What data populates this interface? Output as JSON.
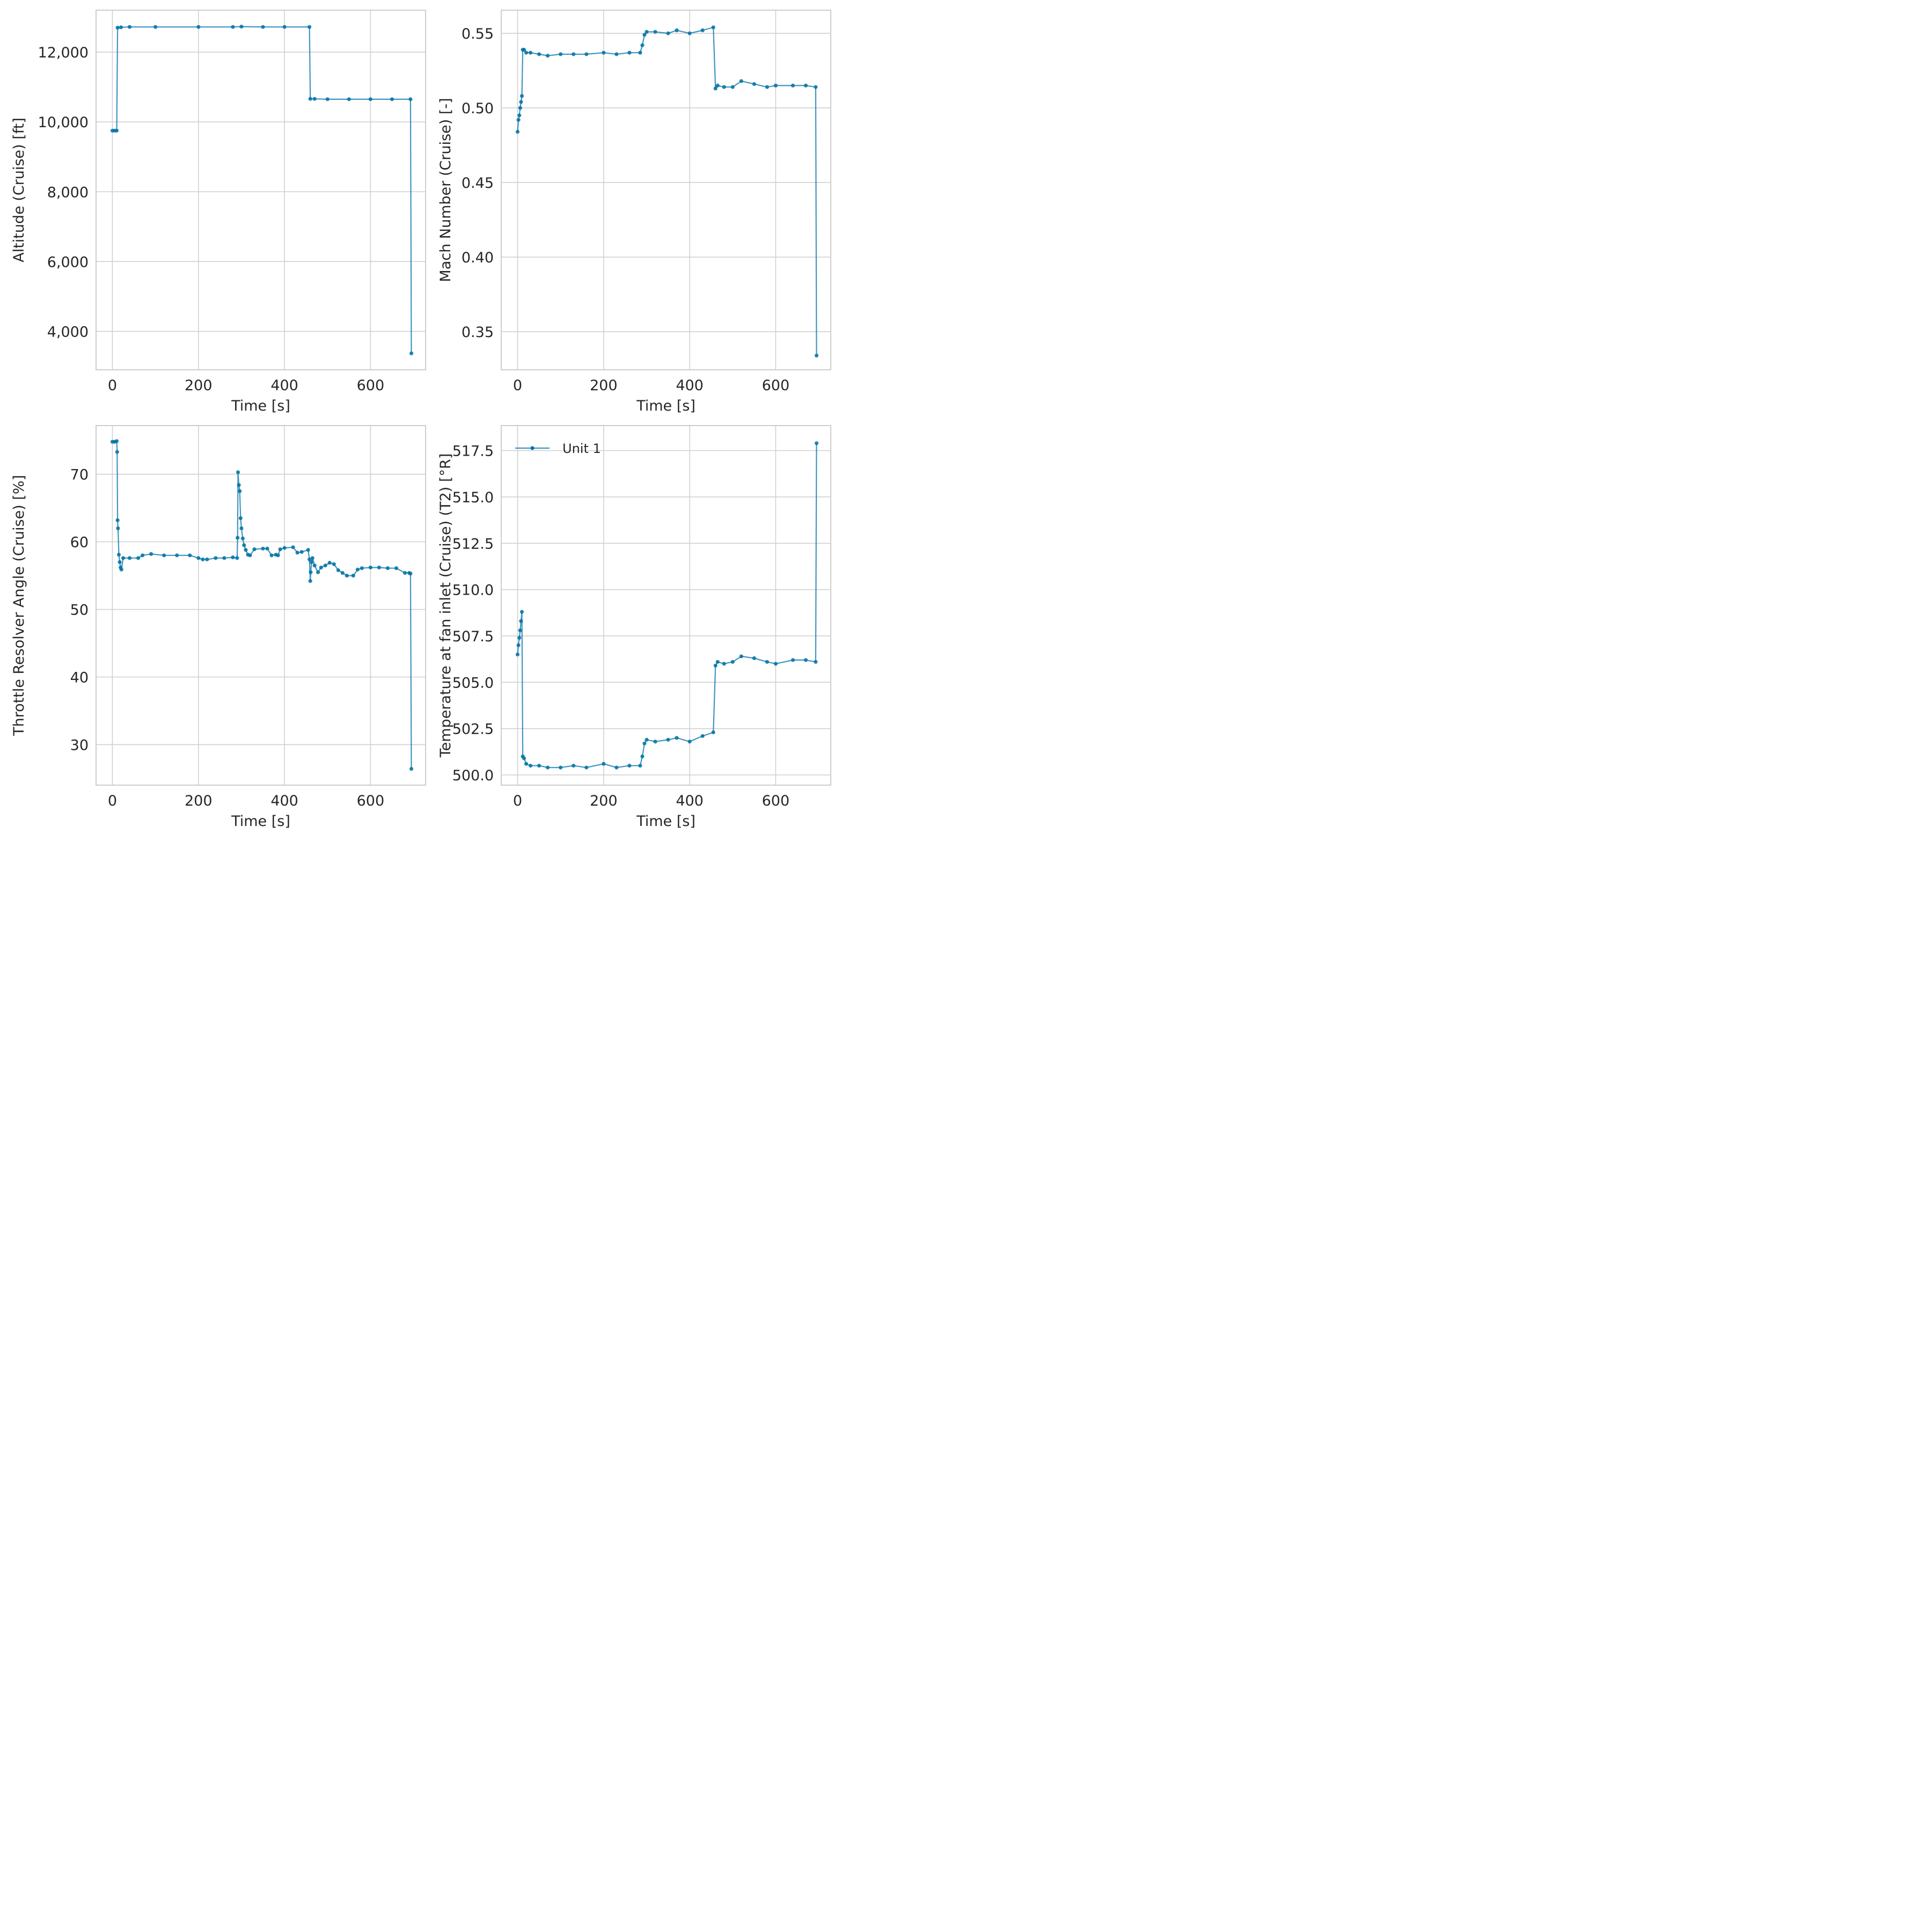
{
  "chart_data": [
    {
      "type": "line",
      "xlabel": "Time [s]",
      "ylabel": "Altitude (Cruise) [ft]",
      "xlim": [
        -38,
        728
      ],
      "ylim": [
        2900,
        13200
      ],
      "xticks": [
        0,
        200,
        400,
        600
      ],
      "xtick_labels": [
        "0",
        "200",
        "400",
        "600"
      ],
      "yticks": [
        4000,
        6000,
        8000,
        10000,
        12000
      ],
      "ytick_labels": [
        "4,000",
        "6,000",
        "8,000",
        "10,000",
        "12,000"
      ],
      "grid": true,
      "series": [
        {
          "x": [
            0,
            5,
            10,
            12,
            20,
            40,
            100,
            200,
            280,
            300,
            350,
            400,
            458,
            460,
            470,
            500,
            550,
            600,
            650,
            693,
            695
          ],
          "y": [
            9750,
            9750,
            9750,
            12700,
            12710,
            12720,
            12720,
            12720,
            12720,
            12730,
            12720,
            12720,
            12720,
            10660,
            10660,
            10650,
            10650,
            10650,
            10650,
            10650,
            3370
          ]
        }
      ]
    },
    {
      "type": "line",
      "xlabel": "Time [s]",
      "ylabel": "Mach Number (Cruise) [-]",
      "xlim": [
        -38,
        728
      ],
      "ylim": [
        0.3245,
        0.5655
      ],
      "xticks": [
        0,
        200,
        400,
        600
      ],
      "xtick_labels": [
        "0",
        "200",
        "400",
        "600"
      ],
      "yticks": [
        0.35,
        0.4,
        0.45,
        0.5,
        0.55
      ],
      "ytick_labels": [
        "0.35",
        "0.40",
        "0.45",
        "0.50",
        "0.55"
      ],
      "grid": true,
      "series": [
        {
          "x": [
            0,
            2,
            4,
            6,
            8,
            10,
            12,
            15,
            20,
            30,
            50,
            70,
            100,
            130,
            160,
            200,
            230,
            260,
            285,
            290,
            295,
            300,
            320,
            350,
            370,
            400,
            430,
            455,
            460,
            465,
            480,
            500,
            520,
            550,
            580,
            600,
            640,
            670,
            693,
            695
          ],
          "y": [
            0.484,
            0.492,
            0.495,
            0.5,
            0.504,
            0.508,
            0.539,
            0.539,
            0.537,
            0.537,
            0.536,
            0.535,
            0.536,
            0.536,
            0.536,
            0.537,
            0.536,
            0.537,
            0.537,
            0.542,
            0.549,
            0.551,
            0.551,
            0.55,
            0.552,
            0.55,
            0.552,
            0.554,
            0.513,
            0.515,
            0.514,
            0.514,
            0.518,
            0.516,
            0.514,
            0.515,
            0.515,
            0.515,
            0.514,
            0.334
          ]
        }
      ]
    },
    {
      "type": "line",
      "xlabel": "Time [s]",
      "ylabel": "Throttle Resolver Angle (Cruise) [%]",
      "xlim": [
        -38,
        728
      ],
      "ylim": [
        24,
        77.2
      ],
      "xticks": [
        0,
        200,
        400,
        600
      ],
      "xtick_labels": [
        "0",
        "200",
        "400",
        "600"
      ],
      "yticks": [
        30,
        40,
        50,
        60,
        70
      ],
      "ytick_labels": [
        "30",
        "40",
        "50",
        "60",
        "70"
      ],
      "grid": true,
      "series": [
        {
          "x": [
            0,
            5,
            10,
            11,
            12,
            13,
            15,
            17,
            19,
            21,
            25,
            40,
            60,
            70,
            90,
            120,
            150,
            180,
            200,
            210,
            220,
            240,
            260,
            280,
            290,
            291,
            292,
            294,
            296,
            298,
            300,
            303,
            306,
            310,
            315,
            320,
            330,
            350,
            360,
            370,
            380,
            385,
            390,
            400,
            420,
            430,
            440,
            455,
            458,
            460,
            461,
            463,
            465,
            470,
            478,
            485,
            495,
            505,
            515,
            525,
            535,
            545,
            560,
            570,
            580,
            600,
            620,
            640,
            660,
            680,
            690,
            693,
            695
          ],
          "y": [
            74.8,
            74.8,
            74.9,
            73.3,
            63.2,
            62.0,
            58.1,
            57.0,
            56.2,
            55.9,
            57.6,
            57.6,
            57.6,
            58.0,
            58.2,
            58.0,
            58.0,
            58.0,
            57.6,
            57.4,
            57.4,
            57.6,
            57.6,
            57.7,
            57.6,
            60.6,
            70.3,
            68.4,
            67.5,
            63.5,
            62.0,
            60.5,
            59.5,
            58.8,
            58.1,
            58.0,
            58.9,
            59.0,
            59.0,
            58.0,
            58.1,
            58.0,
            58.9,
            59.1,
            59.2,
            58.4,
            58.5,
            58.8,
            57.4,
            54.2,
            55.5,
            57.0,
            57.6,
            56.5,
            55.5,
            56.2,
            56.5,
            56.9,
            56.7,
            55.8,
            55.4,
            55.0,
            55.0,
            55.9,
            56.1,
            56.2,
            56.2,
            56.1,
            56.1,
            55.4,
            55.4,
            55.3,
            26.4
          ]
        }
      ]
    },
    {
      "type": "line",
      "xlabel": "Time [s]",
      "ylabel": "Temperature at fan inlet (Cruise) (T2) [°R]",
      "xlim": [
        -38,
        728
      ],
      "ylim": [
        499.45,
        518.85
      ],
      "xticks": [
        0,
        200,
        400,
        600
      ],
      "xtick_labels": [
        "0",
        "200",
        "400",
        "600"
      ],
      "yticks": [
        500.0,
        502.5,
        505.0,
        507.5,
        510.0,
        512.5,
        515.0,
        517.5
      ],
      "ytick_labels": [
        "500.0",
        "502.5",
        "505.0",
        "507.5",
        "510.0",
        "512.5",
        "515.0",
        "517.5"
      ],
      "grid": true,
      "legend": "top-left",
      "series": [
        {
          "name": "Unit 1",
          "x": [
            0,
            2,
            4,
            6,
            8,
            10,
            12,
            15,
            20,
            30,
            50,
            70,
            100,
            130,
            160,
            200,
            230,
            260,
            285,
            290,
            295,
            300,
            320,
            350,
            370,
            400,
            430,
            455,
            460,
            465,
            480,
            500,
            520,
            550,
            580,
            600,
            640,
            670,
            693,
            695
          ],
          "y": [
            506.5,
            507.0,
            507.4,
            507.8,
            508.3,
            508.8,
            501.0,
            500.9,
            500.6,
            500.5,
            500.5,
            500.4,
            500.4,
            500.5,
            500.4,
            500.6,
            500.4,
            500.5,
            500.5,
            501.0,
            501.7,
            501.9,
            501.8,
            501.9,
            502.0,
            501.8,
            502.1,
            502.3,
            505.9,
            506.1,
            506.0,
            506.1,
            506.4,
            506.3,
            506.1,
            506.0,
            506.2,
            506.2,
            506.1,
            517.9
          ]
        }
      ]
    }
  ],
  "colors": {
    "series": "#0072a6",
    "grid": "#d0d0d0",
    "spine": "#c8c8c8",
    "text": "#262626"
  }
}
